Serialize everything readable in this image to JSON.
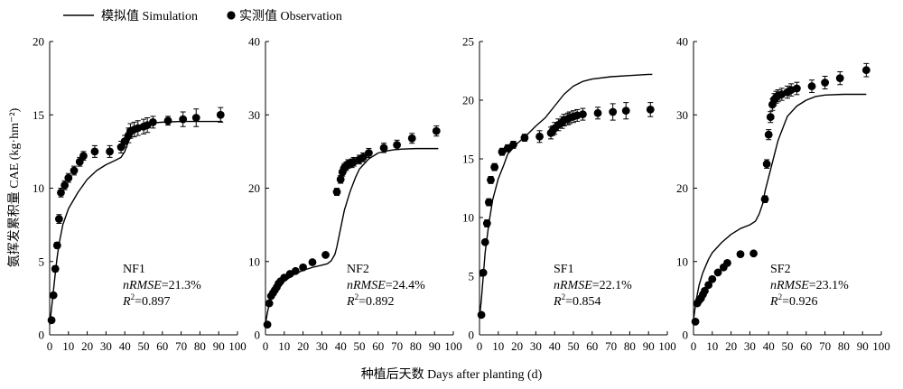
{
  "legend": {
    "simulation_label": "模拟值 Simulation",
    "observation_label": "实测值 Observation"
  },
  "ylabel": "氨挥发累积量 CAE (kg·hm⁻²)",
  "xlabel": "种植后天数 Days after planting (d)",
  "colors": {
    "ink": "#000000",
    "background": "#ffffff"
  },
  "chart_data": [
    {
      "type": "line",
      "panel": "NF1",
      "stats": {
        "nrmse_label": "nRMSE",
        "nrmse_value": "=21.3%",
        "r2_value": "=0.897"
      },
      "xlim": [
        0,
        100
      ],
      "ylim": [
        0,
        20
      ],
      "xticks": [
        0,
        10,
        20,
        30,
        40,
        50,
        60,
        70,
        80,
        90,
        100
      ],
      "yticks": [
        0,
        5,
        10,
        15,
        20
      ],
      "simulation": {
        "x": [
          0,
          1,
          2,
          3,
          4,
          5,
          7,
          10,
          15,
          20,
          25,
          30,
          35,
          38,
          40,
          42,
          45,
          48,
          50,
          55,
          60,
          70,
          80,
          90,
          92
        ],
        "y": [
          0.7,
          1.8,
          3.0,
          4.2,
          5.3,
          6.2,
          7.5,
          8.6,
          9.7,
          10.6,
          11.2,
          11.6,
          11.9,
          12.1,
          12.5,
          13.2,
          13.9,
          14.2,
          14.35,
          14.45,
          14.5,
          14.55,
          14.55,
          14.55,
          14.55
        ]
      },
      "observation": {
        "x": [
          1,
          2,
          3,
          4,
          5,
          6,
          8,
          10,
          13,
          16,
          18,
          24,
          32,
          38,
          40,
          42,
          43,
          45,
          47,
          50,
          52,
          55,
          63,
          71,
          78,
          91
        ],
        "y": [
          1.0,
          2.7,
          4.5,
          6.1,
          7.9,
          9.7,
          10.2,
          10.7,
          11.2,
          11.8,
          12.2,
          12.5,
          12.5,
          12.8,
          13.2,
          13.6,
          13.9,
          14.0,
          14.1,
          14.2,
          14.3,
          14.5,
          14.6,
          14.7,
          14.8,
          15.0
        ],
        "err": [
          0.1,
          0.1,
          0.2,
          0.2,
          0.3,
          0.3,
          0.3,
          0.3,
          0.3,
          0.3,
          0.3,
          0.4,
          0.4,
          0.4,
          0.4,
          0.5,
          0.5,
          0.5,
          0.5,
          0.5,
          0.5,
          0.4,
          0.3,
          0.5,
          0.6,
          0.5
        ]
      }
    },
    {
      "type": "line",
      "panel": "NF2",
      "stats": {
        "nrmse_label": "nRMSE",
        "nrmse_value": "=24.4%",
        "r2_value": "=0.892"
      },
      "xlim": [
        0,
        100
      ],
      "ylim": [
        0,
        40
      ],
      "xticks": [
        0,
        10,
        20,
        30,
        40,
        50,
        60,
        70,
        80,
        90,
        100
      ],
      "yticks": [
        0,
        10,
        20,
        30,
        40
      ],
      "simulation": {
        "x": [
          0,
          1,
          2,
          3,
          5,
          8,
          10,
          15,
          20,
          25,
          30,
          33,
          35,
          37,
          38,
          40,
          42,
          45,
          48,
          50,
          55,
          60,
          65,
          70,
          80,
          90,
          92
        ],
        "y": [
          1.5,
          3.0,
          4.2,
          5.0,
          5.8,
          6.6,
          7.3,
          8.2,
          8.8,
          9.2,
          9.5,
          9.7,
          10.1,
          11.0,
          12.0,
          14.5,
          17.0,
          19.5,
          21.5,
          22.6,
          24.0,
          24.8,
          25.1,
          25.3,
          25.4,
          25.4,
          25.4
        ]
      },
      "observation": {
        "x": [
          1,
          2,
          3,
          4,
          5,
          6,
          7,
          8,
          10,
          13,
          16,
          20,
          25,
          32,
          38,
          40,
          41,
          42,
          43,
          44,
          46,
          47,
          50,
          52,
          55,
          63,
          70,
          78,
          91
        ],
        "y": [
          1.4,
          4.3,
          5.3,
          5.7,
          6.1,
          6.5,
          7.0,
          7.3,
          7.8,
          8.3,
          8.7,
          9.2,
          9.9,
          10.9,
          19.5,
          21.2,
          22.2,
          22.8,
          23.0,
          23.3,
          23.4,
          23.6,
          23.9,
          24.2,
          24.8,
          25.5,
          25.9,
          26.8,
          27.8
        ]
      }
    },
    {
      "type": "line",
      "panel": "SF1",
      "stats": {
        "nrmse_label": "nRMSE",
        "nrmse_value": "=22.1%",
        "r2_value": "=0.854"
      },
      "xlim": [
        0,
        100
      ],
      "ylim": [
        0,
        25
      ],
      "xticks": [
        0,
        10,
        20,
        30,
        40,
        50,
        60,
        70,
        80,
        90,
        100
      ],
      "yticks": [
        0,
        5,
        10,
        15,
        20,
        25
      ],
      "simulation": {
        "x": [
          0,
          1,
          2,
          3,
          5,
          7,
          10,
          13,
          15,
          20,
          25,
          30,
          35,
          40,
          45,
          50,
          55,
          60,
          70,
          80,
          90,
          92
        ],
        "y": [
          1.5,
          3.0,
          5.0,
          7.0,
          9.5,
          11.5,
          13.3,
          14.5,
          15.4,
          16.3,
          17.0,
          17.8,
          18.5,
          19.5,
          20.5,
          21.2,
          21.6,
          21.8,
          22.0,
          22.1,
          22.2,
          22.2
        ]
      },
      "observation": {
        "x": [
          1,
          2,
          3,
          4,
          5,
          6,
          8,
          12,
          15,
          18,
          24,
          32,
          38,
          39,
          40,
          42,
          44,
          45,
          47,
          48,
          50,
          52,
          55,
          63,
          71,
          78,
          91
        ],
        "y": [
          1.7,
          5.3,
          7.9,
          9.5,
          11.3,
          13.2,
          14.3,
          15.6,
          15.9,
          16.2,
          16.8,
          16.9,
          17.2,
          17.4,
          17.6,
          17.9,
          18.1,
          18.3,
          18.4,
          18.5,
          18.6,
          18.7,
          18.8,
          18.9,
          19.0,
          19.1,
          19.2
        ],
        "err": [
          0.2,
          0.2,
          0.2,
          0.3,
          0.3,
          0.3,
          0.3,
          0.3,
          0.3,
          0.3,
          0.3,
          0.5,
          0.5,
          0.4,
          0.5,
          0.5,
          0.5,
          0.5,
          0.5,
          0.5,
          0.5,
          0.5,
          0.5,
          0.5,
          0.7,
          0.7,
          0.6
        ]
      }
    },
    {
      "type": "line",
      "panel": "SF2",
      "stats": {
        "nrmse_label": "nRMSE",
        "nrmse_value": "=23.1%",
        "r2_value": "=0.926"
      },
      "xlim": [
        0,
        100
      ],
      "ylim": [
        0,
        40
      ],
      "xticks": [
        0,
        10,
        20,
        30,
        40,
        50,
        60,
        70,
        80,
        90,
        100
      ],
      "yticks": [
        0,
        10,
        20,
        30,
        40
      ],
      "simulation": {
        "x": [
          0,
          1,
          2,
          3,
          5,
          8,
          10,
          15,
          20,
          25,
          30,
          33,
          35,
          37,
          38,
          40,
          42,
          45,
          48,
          50,
          55,
          60,
          65,
          70,
          80,
          90,
          92
        ],
        "y": [
          2.0,
          4.0,
          5.5,
          6.8,
          8.5,
          10.3,
          11.2,
          12.6,
          13.7,
          14.5,
          15.0,
          15.5,
          16.5,
          18.0,
          19.5,
          21.5,
          23.5,
          26.5,
          28.5,
          29.8,
          31.2,
          32.0,
          32.5,
          32.7,
          32.8,
          32.8,
          32.8
        ]
      },
      "observation": {
        "x": [
          1,
          2,
          3,
          4,
          5,
          6,
          8,
          10,
          13,
          16,
          18,
          25,
          32,
          38,
          39,
          40,
          41,
          42,
          43,
          44,
          45,
          47,
          50,
          52,
          55,
          63,
          70,
          78,
          92
        ],
        "y": [
          1.8,
          4.3,
          4.7,
          5.0,
          5.5,
          6.0,
          6.8,
          7.6,
          8.5,
          9.2,
          9.8,
          11.0,
          11.1,
          18.5,
          23.3,
          27.3,
          29.7,
          31.4,
          32.1,
          32.4,
          32.6,
          32.8,
          33.1,
          33.4,
          33.6,
          33.9,
          34.4,
          35.0,
          36.1
        ]
      }
    }
  ]
}
